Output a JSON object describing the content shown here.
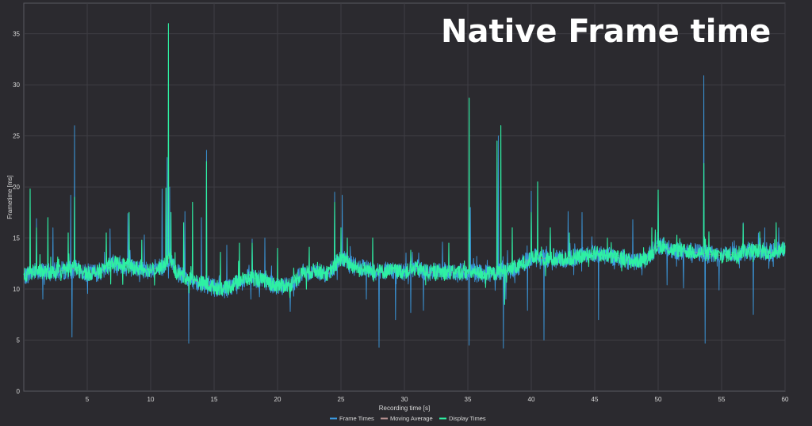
{
  "overlay_title": "Native Frame time",
  "chart_data": {
    "type": "line",
    "xlabel": "Recording time [s]",
    "ylabel": "Frametime [ms]",
    "xlim": [
      0,
      60
    ],
    "ylim": [
      0,
      38
    ],
    "x_ticks": [
      5,
      10,
      15,
      20,
      25,
      30,
      35,
      40,
      45,
      50,
      55,
      60
    ],
    "y_ticks": [
      0,
      5,
      10,
      15,
      20,
      25,
      30,
      35
    ],
    "grid": true,
    "legend_position": "bottom-center",
    "colors": {
      "background": "#2b2a2f",
      "plot_border": "#5a5960",
      "grid": "#3f3e44",
      "frame_times": "#3b9ae0",
      "moving_average": "#b58f8f",
      "display_times": "#2ef0a3"
    },
    "baseline": [
      [
        0,
        11.3
      ],
      [
        1,
        11.8
      ],
      [
        2,
        11.6
      ],
      [
        3,
        11.8
      ],
      [
        4,
        12.0
      ],
      [
        5,
        11.5
      ],
      [
        6,
        11.7
      ],
      [
        7,
        12.6
      ],
      [
        8,
        12.3
      ],
      [
        9,
        12.0
      ],
      [
        10,
        11.9
      ],
      [
        11,
        12.2
      ],
      [
        11.5,
        13.2
      ],
      [
        12,
        11.6
      ],
      [
        13,
        11.0
      ],
      [
        14,
        10.6
      ],
      [
        15,
        10.2
      ],
      [
        16,
        10.0
      ],
      [
        17,
        10.9
      ],
      [
        18,
        11.1
      ],
      [
        19,
        10.8
      ],
      [
        20,
        10.3
      ],
      [
        21,
        10.4
      ],
      [
        22,
        11.6
      ],
      [
        23,
        11.8
      ],
      [
        24,
        11.5
      ],
      [
        25,
        13.0
      ],
      [
        26,
        12.2
      ],
      [
        27,
        11.9
      ],
      [
        28,
        11.7
      ],
      [
        29,
        11.8
      ],
      [
        30,
        11.7
      ],
      [
        31,
        12.0
      ],
      [
        32,
        11.6
      ],
      [
        33,
        11.7
      ],
      [
        34,
        11.6
      ],
      [
        35,
        11.7
      ],
      [
        36,
        11.5
      ],
      [
        37,
        11.5
      ],
      [
        38,
        11.8
      ],
      [
        39,
        12.2
      ],
      [
        40,
        13.1
      ],
      [
        41,
        13.0
      ],
      [
        42,
        12.9
      ],
      [
        43,
        13.0
      ],
      [
        44,
        13.2
      ],
      [
        45,
        13.5
      ],
      [
        46,
        13.3
      ],
      [
        47,
        13.0
      ],
      [
        48,
        12.7
      ],
      [
        49,
        12.9
      ],
      [
        50,
        14.3
      ],
      [
        51,
        13.9
      ],
      [
        52,
        13.7
      ],
      [
        53,
        13.6
      ],
      [
        54,
        13.4
      ],
      [
        55,
        13.3
      ],
      [
        56,
        13.4
      ],
      [
        57,
        13.9
      ],
      [
        58,
        13.7
      ],
      [
        59,
        13.6
      ],
      [
        60,
        14.0
      ]
    ],
    "noise_amplitude_ms": 0.8,
    "series": [
      {
        "name": "Frame Times",
        "spikes": [
          [
            1.0,
            16.9
          ],
          [
            1.5,
            9.0
          ],
          [
            2.3,
            16.0
          ],
          [
            3.7,
            19.2
          ],
          [
            3.8,
            5.3
          ],
          [
            4.0,
            26.0
          ],
          [
            6.8,
            15.9
          ],
          [
            8.2,
            17.4
          ],
          [
            9.5,
            15.3
          ],
          [
            10.9,
            19.8
          ],
          [
            11.3,
            22.9
          ],
          [
            11.5,
            20.0
          ],
          [
            12.7,
            17.6
          ],
          [
            13.0,
            20.7
          ],
          [
            13.0,
            4.7
          ],
          [
            14.0,
            17.0
          ],
          [
            14.4,
            23.6
          ],
          [
            16.0,
            14.3
          ],
          [
            17.9,
            9.0
          ],
          [
            18.0,
            14.9
          ],
          [
            19.0,
            15.0
          ],
          [
            21.0,
            7.8
          ],
          [
            24.5,
            19.5
          ],
          [
            25.1,
            19.2
          ],
          [
            27.0,
            9.0
          ],
          [
            28.0,
            4.3
          ],
          [
            29.3,
            7.0
          ],
          [
            30.5,
            7.7
          ],
          [
            31.5,
            7.9
          ],
          [
            33.0,
            14.6
          ],
          [
            35.1,
            4.5
          ],
          [
            35.2,
            18.0
          ],
          [
            37.4,
            25.0
          ],
          [
            37.8,
            4.2
          ],
          [
            38.0,
            9.0
          ],
          [
            39.7,
            7.9
          ],
          [
            40.0,
            19.6
          ],
          [
            41.0,
            5.0
          ],
          [
            41.5,
            15.9
          ],
          [
            42.9,
            17.6
          ],
          [
            44.0,
            17.5
          ],
          [
            45.3,
            7.0
          ],
          [
            48.0,
            16.8
          ],
          [
            50.0,
            19.7
          ],
          [
            50.7,
            10.4
          ],
          [
            52.0,
            10.1
          ],
          [
            53.6,
            30.9
          ],
          [
            53.7,
            4.7
          ],
          [
            54.8,
            9.9
          ],
          [
            56.7,
            16.5
          ],
          [
            57.5,
            7.5
          ],
          [
            57.9,
            15.5
          ],
          [
            58.4,
            16.0
          ],
          [
            59.5,
            16.0
          ]
        ]
      },
      {
        "name": "Moving Average",
        "spikes": []
      },
      {
        "name": "Display Times",
        "spikes": [
          [
            0.5,
            19.8
          ],
          [
            1.0,
            16.0
          ],
          [
            1.9,
            17.0
          ],
          [
            3.5,
            15.5
          ],
          [
            4.0,
            19.0
          ],
          [
            6.5,
            15.5
          ],
          [
            8.3,
            17.5
          ],
          [
            9.3,
            14.8
          ],
          [
            11.2,
            19.9
          ],
          [
            11.4,
            36.0
          ],
          [
            11.6,
            17.5
          ],
          [
            12.6,
            16.5
          ],
          [
            13.3,
            18.5
          ],
          [
            14.4,
            22.5
          ],
          [
            15.5,
            13.6
          ],
          [
            17.0,
            14.5
          ],
          [
            18.0,
            14.5
          ],
          [
            20.0,
            14.0
          ],
          [
            22.5,
            14.1
          ],
          [
            24.5,
            18.5
          ],
          [
            25.0,
            16.0
          ],
          [
            25.5,
            15.0
          ],
          [
            27.5,
            15.0
          ],
          [
            30.5,
            13.8
          ],
          [
            33.5,
            14.5
          ],
          [
            35.1,
            28.7
          ],
          [
            35.3,
            11.8
          ],
          [
            37.3,
            24.5
          ],
          [
            37.6,
            26.0
          ],
          [
            37.9,
            8.5
          ],
          [
            38.5,
            16.0
          ],
          [
            40.0,
            17.5
          ],
          [
            40.5,
            20.5
          ],
          [
            41.5,
            16.0
          ],
          [
            43.0,
            15.5
          ],
          [
            46.0,
            15.0
          ],
          [
            49.5,
            16.0
          ],
          [
            50.0,
            19.7
          ],
          [
            53.6,
            22.3
          ],
          [
            54.0,
            15.6
          ],
          [
            56.7,
            16.4
          ],
          [
            58.0,
            15.6
          ],
          [
            59.3,
            16.5
          ]
        ]
      }
    ]
  }
}
